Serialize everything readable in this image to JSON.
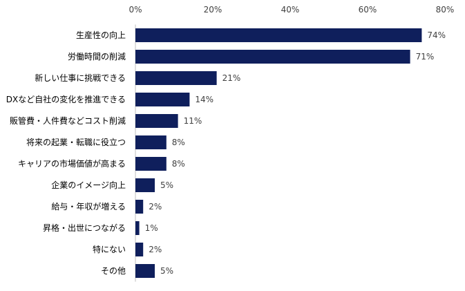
{
  "colors": {
    "bar": "#0f1f5c",
    "axis": "#bfbfbf"
  },
  "chart_data": {
    "type": "bar",
    "orientation": "horizontal",
    "categories": [
      "生産性の向上",
      "労働時間の削減",
      "新しい仕事に挑戦できる",
      "DXなど自社の変化を推進できる",
      "販管費・人件費などコスト削減",
      "将来の起業・転職に役立つ",
      "キャリアの市場価値が高まる",
      "企業のイメージ向上",
      "給与・年収が増える",
      "昇格・出世につながる",
      "特にない",
      "その他"
    ],
    "values": [
      74,
      71,
      21,
      14,
      11,
      8,
      8,
      5,
      2,
      1,
      2,
      5
    ],
    "value_labels": [
      "74%",
      "71%",
      "21%",
      "14%",
      "11%",
      "8%",
      "8%",
      "5%",
      "2%",
      "1%",
      "2%",
      "5%"
    ],
    "xlim": [
      0,
      80
    ],
    "x_ticks": [
      0,
      20,
      40,
      60,
      80
    ],
    "x_tick_labels": [
      "0%",
      "20%",
      "40%",
      "60%",
      "80%"
    ],
    "x_axis_position": "top",
    "grid": false,
    "legend": false
  }
}
